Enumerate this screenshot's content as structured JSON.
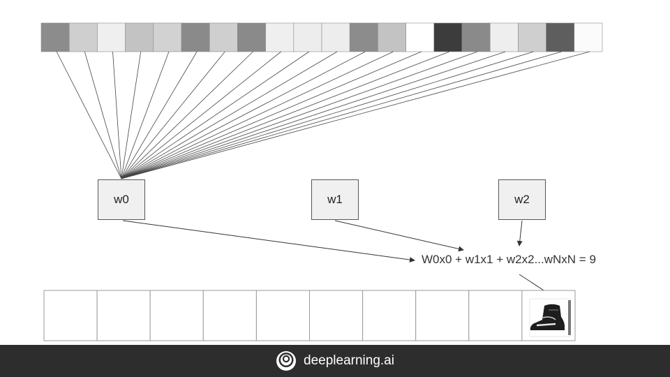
{
  "input_vector": {
    "cell_shades": [
      "#8c8c8c",
      "#cfcfcf",
      "#efefef",
      "#c3c3c3",
      "#d2d2d2",
      "#8a8a8a",
      "#cfcfcf",
      "#8a8a8a",
      "#efefef",
      "#ededed",
      "#ededed",
      "#8c8c8c",
      "#c3c3c3",
      "#ffffff",
      "#3c3c3c",
      "#8a8a8a",
      "#eeeeee",
      "#cfcfcf",
      "#5e5e5e",
      "#fbfbfb"
    ]
  },
  "weights": {
    "w0": "w0",
    "w1": "w1",
    "w2": "w2"
  },
  "equation": "W0x0 + w1x1 + w2x2...wNxN = 9",
  "output_vector": {
    "cell_count": 10,
    "highlighted_index": 9
  },
  "footer": {
    "brand": "deeplearning.ai",
    "background": "#2d2d2d"
  }
}
